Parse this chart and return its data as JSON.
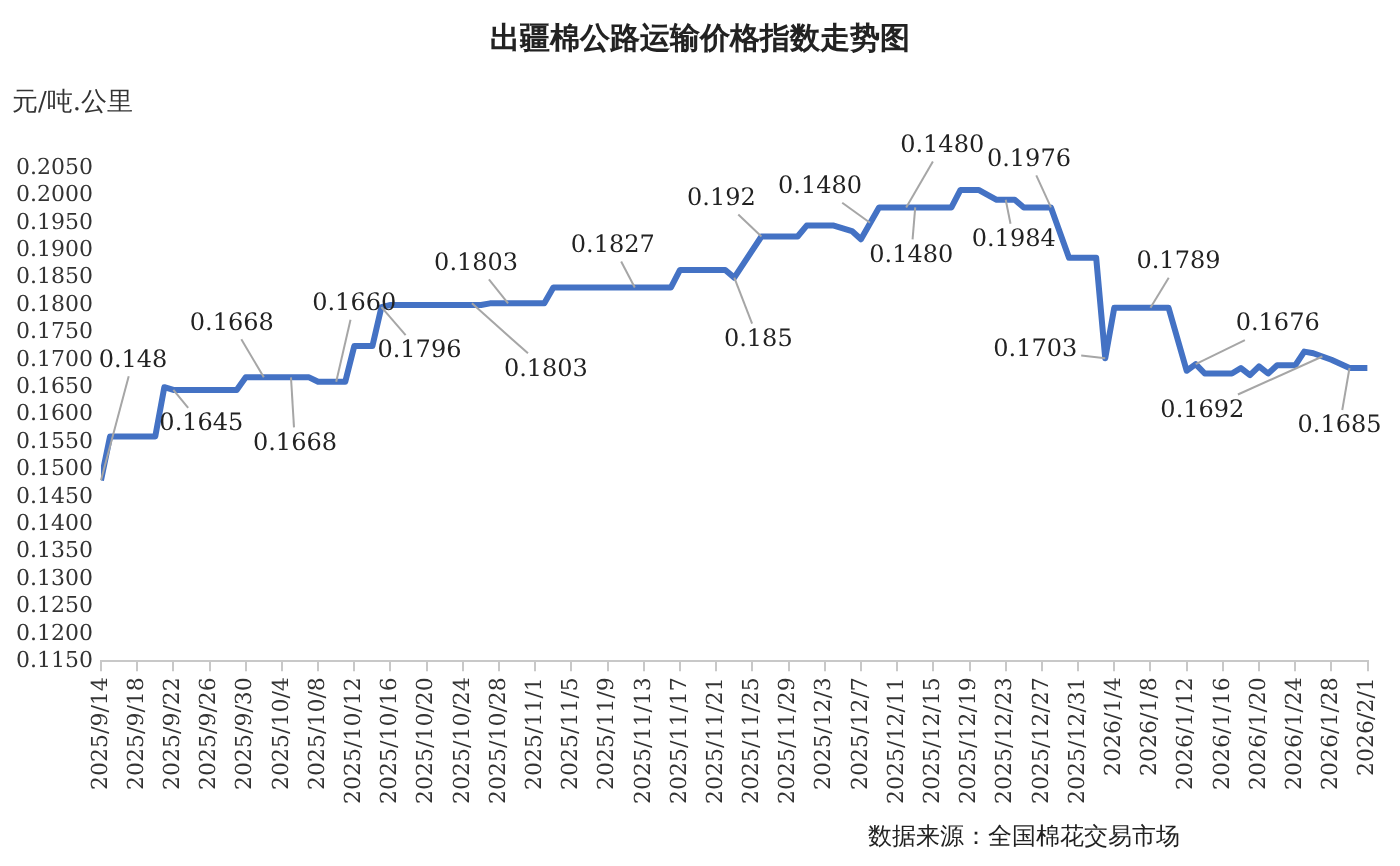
{
  "chart_data": {
    "type": "line",
    "title": "出疆棉公路运输价格指数走势图",
    "ylabel": "元/吨.公里",
    "xlim": [
      "2025-09-14",
      "2026-02-01"
    ],
    "xticks": [
      {
        "value": "2025-09-14",
        "label": "2025/9/14"
      },
      {
        "value": "2025-09-18",
        "label": "2025/9/18"
      },
      {
        "value": "2025-09-22",
        "label": "2025/9/22"
      },
      {
        "value": "2025-09-26",
        "label": "2025/9/26"
      },
      {
        "value": "2025-09-30",
        "label": "2025/9/30"
      },
      {
        "value": "2025-10-04",
        "label": "2025/10/4"
      },
      {
        "value": "2025-10-08",
        "label": "2025/10/8"
      },
      {
        "value": "2025-10-12",
        "label": "2025/10/12"
      },
      {
        "value": "2025-10-16",
        "label": "2025/10/16"
      },
      {
        "value": "2025-10-20",
        "label": "2025/10/20"
      },
      {
        "value": "2025-10-24",
        "label": "2025/10/24"
      },
      {
        "value": "2025-10-28",
        "label": "2025/10/28"
      },
      {
        "value": "2025-11-01",
        "label": "2025/11/1"
      },
      {
        "value": "2025-11-05",
        "label": "2025/11/5"
      },
      {
        "value": "2025-11-09",
        "label": "2025/11/9"
      },
      {
        "value": "2025-11-13",
        "label": "2025/11/13"
      },
      {
        "value": "2025-11-17",
        "label": "2025/11/17"
      },
      {
        "value": "2025-11-21",
        "label": "2025/11/21"
      },
      {
        "value": "2025-11-25",
        "label": "2025/11/25"
      },
      {
        "value": "2025-11-29",
        "label": "2025/11/29"
      },
      {
        "value": "2025-12-03",
        "label": "2025/12/3"
      },
      {
        "value": "2025-12-07",
        "label": "2025/12/7"
      },
      {
        "value": "2025-12-11",
        "label": "2025/12/11"
      },
      {
        "value": "2025-12-15",
        "label": "2025/12/15"
      },
      {
        "value": "2025-12-19",
        "label": "2025/12/19"
      },
      {
        "value": "2025-12-23",
        "label": "2025/12/23"
      },
      {
        "value": "2025-12-27",
        "label": "2025/12/27"
      },
      {
        "value": "2025-12-31",
        "label": "2025/12/31"
      },
      {
        "value": "2026-01-04",
        "label": "2026/1/4"
      },
      {
        "value": "2026-01-08",
        "label": "2026/1/8"
      },
      {
        "value": "2026-01-12",
        "label": "2026/1/12"
      },
      {
        "value": "2026-01-16",
        "label": "2026/1/16"
      },
      {
        "value": "2026-01-20",
        "label": "2026/1/20"
      },
      {
        "value": "2026-01-24",
        "label": "2026/1/24"
      },
      {
        "value": "2026-01-28",
        "label": "2026/1/28"
      },
      {
        "value": "2026-02-01",
        "label": "2026/2/1"
      }
    ],
    "ylim": [
      0.115,
      0.205
    ],
    "yticks": [
      {
        "value": 0.115,
        "label": "0.1150"
      },
      {
        "value": 0.12,
        "label": "0.1200"
      },
      {
        "value": 0.125,
        "label": "0.1250"
      },
      {
        "value": 0.13,
        "label": "0.1300"
      },
      {
        "value": 0.135,
        "label": "0.1350"
      },
      {
        "value": 0.14,
        "label": "0.1400"
      },
      {
        "value": 0.145,
        "label": "0.1450"
      },
      {
        "value": 0.15,
        "label": "0.1500"
      },
      {
        "value": 0.155,
        "label": "0.1550"
      },
      {
        "value": 0.16,
        "label": "0.1600"
      },
      {
        "value": 0.165,
        "label": "0.1650"
      },
      {
        "value": 0.17,
        "label": "0.1700"
      },
      {
        "value": 0.175,
        "label": "0.1750"
      },
      {
        "value": 0.18,
        "label": "0.1800"
      },
      {
        "value": 0.185,
        "label": "0.1850"
      },
      {
        "value": 0.19,
        "label": "0.1900"
      },
      {
        "value": 0.195,
        "label": "0.1950"
      },
      {
        "value": 0.2,
        "label": "0.2000"
      },
      {
        "value": 0.205,
        "label": "0.2050"
      }
    ],
    "marker": "none",
    "line_style": "solid",
    "legend": false,
    "series": [
      {
        "color": "#4472c4",
        "x": [
          "2025-09-14",
          "2025-09-15",
          "2025-09-20",
          "2025-09-21",
          "2025-09-22",
          "2025-09-29",
          "2025-09-30",
          "2025-10-07",
          "2025-10-08",
          "2025-10-11",
          "2025-10-12",
          "2025-10-14",
          "2025-10-15",
          "2025-10-16",
          "2025-10-26",
          "2025-10-27",
          "2025-11-02",
          "2025-11-03",
          "2025-11-16",
          "2025-11-17",
          "2025-11-22",
          "2025-11-23",
          "2025-11-26",
          "2025-11-30",
          "2025-12-01",
          "2025-12-04",
          "2025-12-06",
          "2025-12-07",
          "2025-12-09",
          "2025-12-17",
          "2025-12-18",
          "2025-12-20",
          "2025-12-22",
          "2025-12-24",
          "2025-12-25",
          "2025-12-28",
          "2025-12-30",
          "2026-01-02",
          "2026-01-03",
          "2026-01-04",
          "2026-01-10",
          "2026-01-12",
          "2026-01-13",
          "2026-01-14",
          "2026-01-17",
          "2026-01-18",
          "2026-01-19",
          "2026-01-20",
          "2026-01-21",
          "2026-01-22",
          "2026-01-24",
          "2026-01-25",
          "2026-01-26",
          "2026-01-28",
          "2026-01-30",
          "2026-02-01"
        ],
        "values": [
          0.148,
          0.156,
          0.156,
          0.165,
          0.1645,
          0.1645,
          0.1668,
          0.1668,
          0.166,
          0.166,
          0.1725,
          0.1725,
          0.1796,
          0.18,
          0.18,
          0.1803,
          0.1803,
          0.1832,
          0.1832,
          0.1864,
          0.1864,
          0.185,
          0.1925,
          0.1925,
          0.1945,
          0.1945,
          0.1935,
          0.192,
          0.1978,
          0.1978,
          0.201,
          0.201,
          0.1992,
          0.1992,
          0.1978,
          0.1978,
          0.1886,
          0.1886,
          0.1703,
          0.1795,
          0.1795,
          0.168,
          0.1692,
          0.1675,
          0.1675,
          0.1685,
          0.1672,
          0.1688,
          0.1675,
          0.169,
          0.169,
          0.1715,
          0.1712,
          0.17,
          0.1685,
          0.1685
        ]
      }
    ],
    "annotations": [
      {
        "text": "0.148",
        "x": "2025-09-14",
        "y": 0.148
      },
      {
        "text": "0.1645",
        "x": "2025-09-22",
        "y": 0.1645
      },
      {
        "text": "0.1668",
        "x": "2025-10-02",
        "y": 0.1668
      },
      {
        "text": "0.1668",
        "x": "2025-10-05",
        "y": 0.1668
      },
      {
        "text": "0.1660",
        "x": "2025-10-10",
        "y": 0.166
      },
      {
        "text": "0.1796",
        "x": "2025-10-15",
        "y": 0.1796
      },
      {
        "text": "0.1803",
        "x": "2025-10-29",
        "y": 0.1803
      },
      {
        "text": "0.1803",
        "x": "2025-10-25",
        "y": 0.1803
      },
      {
        "text": "0.1827",
        "x": "2025-11-12",
        "y": 0.1832
      },
      {
        "text": "0.192",
        "x": "2025-11-26",
        "y": 0.1925
      },
      {
        "text": "0.185",
        "x": "2025-11-23",
        "y": 0.185
      },
      {
        "text": "0.1480",
        "x": "2025-12-08",
        "y": 0.195
      },
      {
        "text": "0.1480",
        "x": "2025-12-12",
        "y": 0.1978
      },
      {
        "text": "0.1480",
        "x": "2025-12-13",
        "y": 0.1978
      },
      {
        "text": "0.1976",
        "x": "2025-12-28",
        "y": 0.1978
      },
      {
        "text": "0.1984",
        "x": "2025-12-23",
        "y": 0.1992
      },
      {
        "text": "0.1703",
        "x": "2026-01-03",
        "y": 0.1703
      },
      {
        "text": "0.1789",
        "x": "2026-01-08",
        "y": 0.1795
      },
      {
        "text": "0.1676",
        "x": "2026-01-13",
        "y": 0.1692
      },
      {
        "text": "0.1692",
        "x": "2026-01-27",
        "y": 0.1706
      },
      {
        "text": "0.1685",
        "x": "2026-01-30",
        "y": 0.1685
      },
      "数据来源：全国棉花交易市场"
    ]
  }
}
